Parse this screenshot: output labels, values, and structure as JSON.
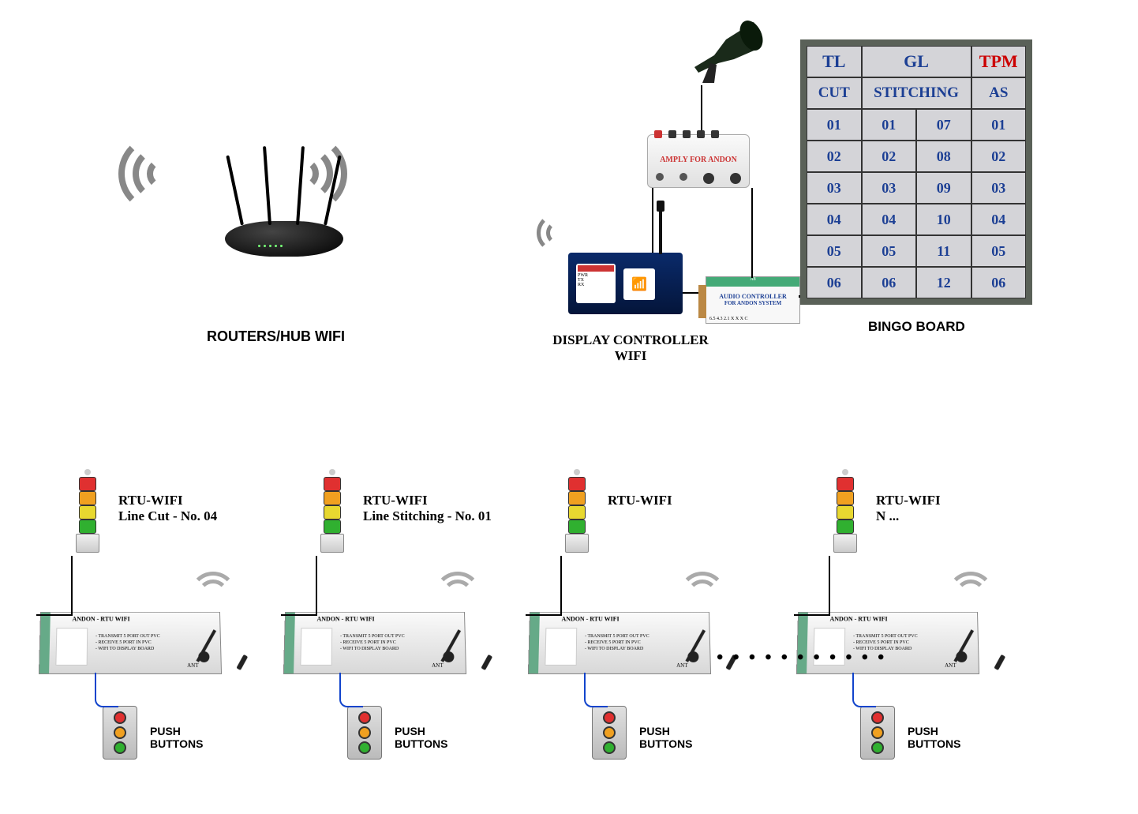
{
  "labels": {
    "router": "ROUTERS/HUB WIFI",
    "display_controller": "DISPLAY CONTROLLER WIFI",
    "bingo_board": "BINGO BOARD",
    "push_buttons": "PUSH BUTTONS",
    "rtu_wifi": "RTU-WIFI",
    "amplifier": "AMPLY FOR ANDON",
    "audio_ctrl_l1": "AUDIO CONTROLLER",
    "audio_ctrl_l2": "FOR ANDON SYSTEM",
    "rtu_box_title": "ANDON - RTU WIFI"
  },
  "rtu_sublabels": {
    "r1": "Line Cut  - No. 04",
    "r2": "Line Stitching  - No. 01",
    "r3": "",
    "r4": "N ..."
  },
  "bingo": {
    "header": [
      {
        "text": "TL",
        "color": "#1c3f94",
        "span": 1
      },
      {
        "text": "GL",
        "color": "#1c3f94",
        "span": 2
      },
      {
        "text": "TPM",
        "color": "#cc0000",
        "span": 1
      }
    ],
    "subheader": [
      {
        "text": "CUT",
        "color": "#1c3f94",
        "span": 1
      },
      {
        "text": "STITCHING",
        "color": "#1c3f94",
        "span": 2
      },
      {
        "text": "AS",
        "color": "#1c3f94",
        "span": 1
      }
    ],
    "rows": [
      [
        "01",
        "01",
        "07",
        "01"
      ],
      [
        "02",
        "02",
        "08",
        "02"
      ],
      [
        "03",
        "03",
        "09",
        "03"
      ],
      [
        "04",
        "04",
        "10",
        "04"
      ],
      [
        "05",
        "05",
        "11",
        "05"
      ],
      [
        "06",
        "06",
        "12",
        "06"
      ]
    ],
    "cell_color": "#1c3f94"
  },
  "tower_colors": [
    "#e03030",
    "#f0a020",
    "#e8d830",
    "#30b030"
  ],
  "push_colors": [
    "#e03030",
    "#f0a020",
    "#30b030"
  ],
  "rtu_positions": [
    50,
    360,
    670,
    1010
  ]
}
